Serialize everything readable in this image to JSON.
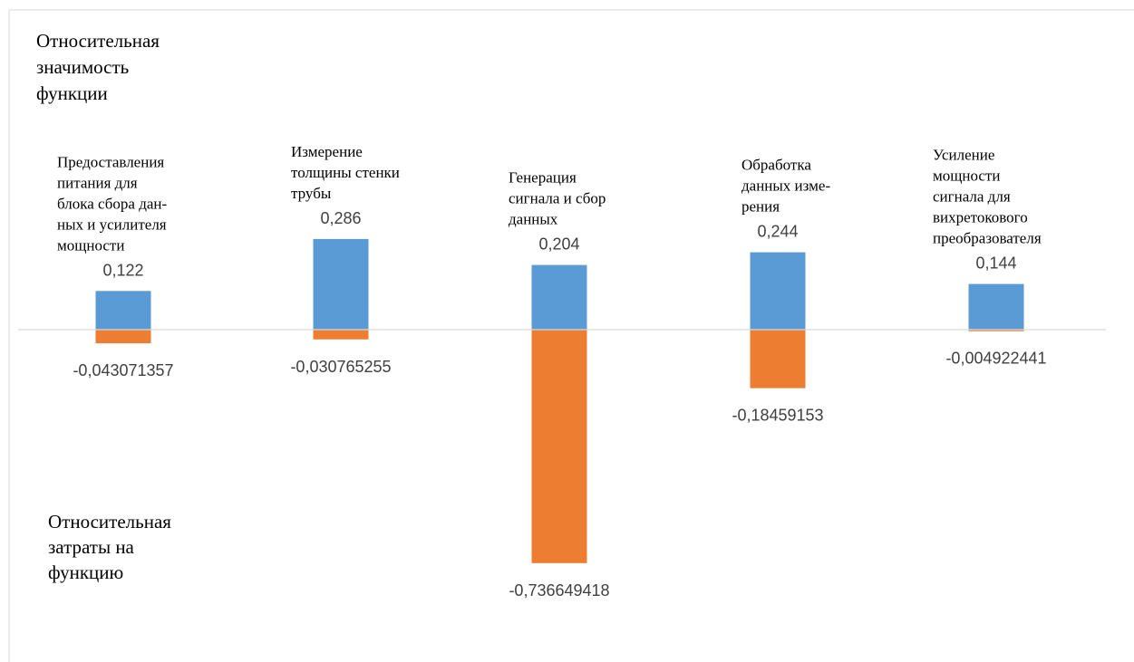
{
  "chart_data": {
    "type": "bar",
    "legend": "none",
    "grid": false,
    "colors": {
      "positive": "#5b9bd5",
      "negative": "#ed7d31",
      "axis": "#d9d9d9",
      "frame": "#d9d9d9"
    },
    "annotations": {
      "top_label": [
        "Относительная",
        "значимость",
        "функции"
      ],
      "bottom_label": [
        "Относительная",
        "затраты на",
        "функцию"
      ]
    },
    "categories": [
      [
        "Предоставления",
        "питания для",
        "блока сбора дан-",
        "ных и усилителя",
        "мощности"
      ],
      [
        "Измерение",
        "толщины стенки",
        "трубы"
      ],
      [
        "Генерация",
        "сигнала и сбор",
        "данных"
      ],
      [
        "Обработка",
        "данных изме-",
        "рения"
      ],
      [
        "Усиление",
        "мощности",
        "сигнала для",
        "вихретокового",
        "преобразователя"
      ]
    ],
    "series": [
      {
        "values": [
          0.122,
          0.286,
          0.204,
          0.244,
          0.144
        ],
        "labels": [
          "0,122",
          "0,286",
          "0,204",
          "0,244",
          "0,144"
        ]
      },
      {
        "values": [
          -0.043071357,
          -0.030765255,
          -0.736649418,
          -0.18459153,
          -0.004922441
        ],
        "labels": [
          "-0,043071357",
          "-0,030765255",
          "-0,736649418",
          "-0,18459153",
          "-0,004922441"
        ]
      }
    ]
  }
}
